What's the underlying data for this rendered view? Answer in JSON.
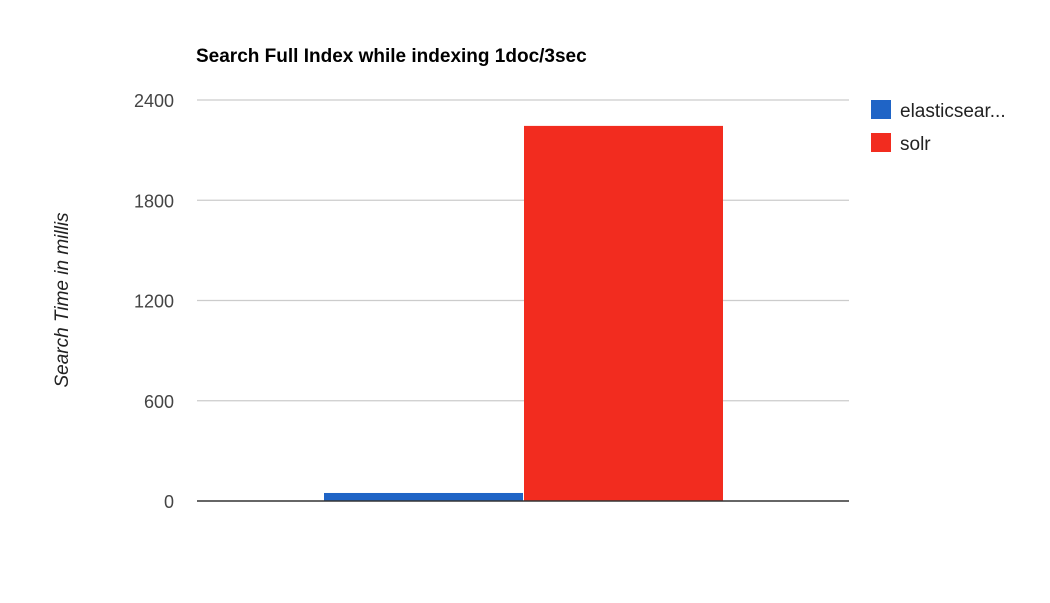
{
  "chart_data": {
    "type": "bar",
    "title": "Search Full Index while indexing 1doc/3sec",
    "ylabel": "Search Time in millis",
    "xlabel": "",
    "categories": [
      ""
    ],
    "series": [
      {
        "name": "elasticsear...",
        "color": "#1f64c6",
        "values": [
          48
        ]
      },
      {
        "name": "solr",
        "color": "#f22c1f",
        "values": [
          2245
        ]
      }
    ],
    "ylim": [
      0,
      2400
    ],
    "yticks": [
      0,
      600,
      1200,
      1800,
      2400
    ],
    "grid": true,
    "legend": "right"
  }
}
